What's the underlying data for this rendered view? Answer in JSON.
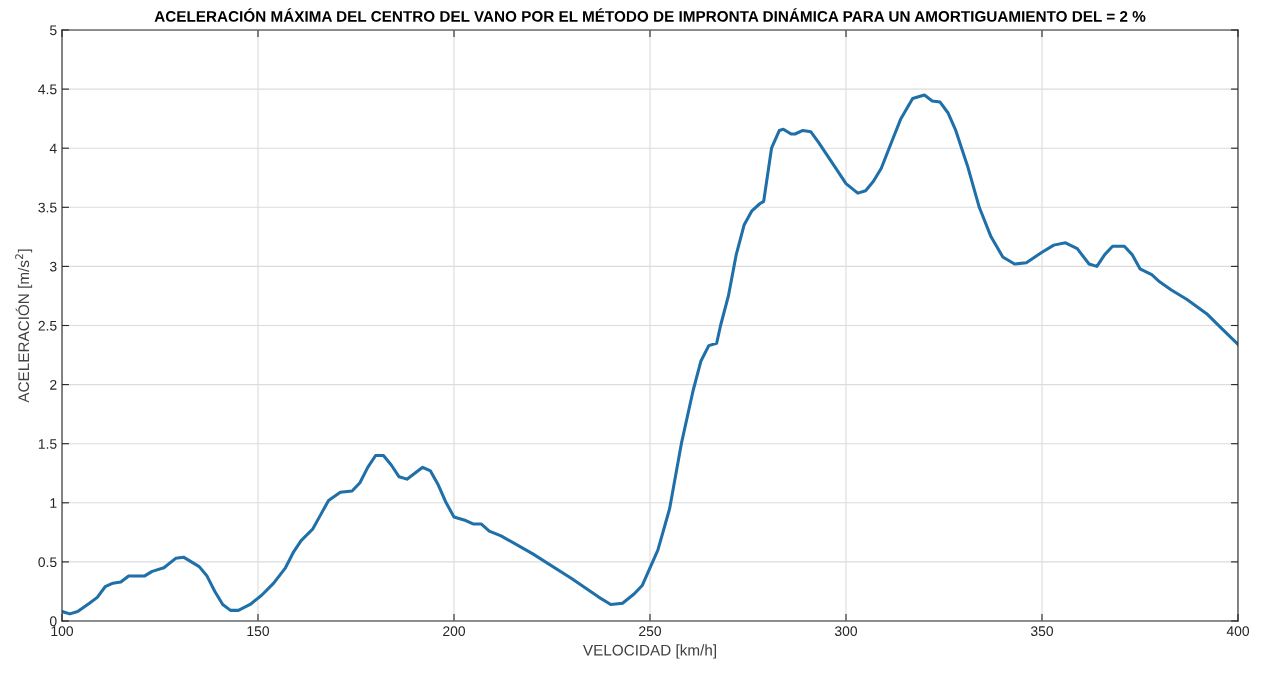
{
  "chart_data": {
    "type": "line",
    "title": "ACELERACIÓN MÁXIMA DEL CENTRO DEL VANO POR EL MÉTODO DE IMPRONTA DINÁMICA PARA UN AMORTIGUAMIENTO DEL = 2 %",
    "xlabel": "VELOCIDAD [km/h]",
    "ylabel": "ACELERACIÓN [m/s$^{2}$]",
    "x": [
      100,
      102,
      104,
      107,
      109,
      111,
      113,
      115,
      117,
      119,
      121,
      123,
      126,
      129,
      131,
      133,
      135,
      137,
      139,
      141,
      143,
      145,
      148,
      151,
      154,
      157,
      159,
      161,
      164,
      166,
      168,
      171,
      174,
      176,
      178,
      180,
      182,
      184,
      186,
      188,
      190,
      192,
      194,
      196,
      198,
      200,
      203,
      205,
      207,
      209,
      212,
      220,
      230,
      237,
      240,
      243,
      246,
      248,
      250,
      252,
      255,
      258,
      261,
      263,
      265,
      267,
      268,
      270,
      272,
      274,
      276,
      278,
      279,
      281,
      283,
      284,
      286,
      287,
      289,
      291,
      293,
      295,
      297,
      300,
      303,
      305,
      307,
      309,
      311,
      314,
      317,
      320,
      322,
      324,
      326,
      328,
      331,
      334,
      337,
      340,
      343,
      346,
      350,
      353,
      356,
      359,
      362,
      364,
      366,
      368,
      371,
      373,
      375,
      378,
      380,
      383,
      387,
      392,
      396,
      400
    ],
    "series": [
      {
        "color": "#1f6fa8",
        "values": [
          0.08,
          0.06,
          0.08,
          0.15,
          0.2,
          0.29,
          0.32,
          0.33,
          0.38,
          0.38,
          0.38,
          0.42,
          0.45,
          0.53,
          0.54,
          0.5,
          0.46,
          0.38,
          0.25,
          0.14,
          0.09,
          0.09,
          0.14,
          0.22,
          0.32,
          0.45,
          0.58,
          0.68,
          0.78,
          0.9,
          1.02,
          1.09,
          1.1,
          1.17,
          1.3,
          1.4,
          1.4,
          1.32,
          1.22,
          1.2,
          1.25,
          1.3,
          1.27,
          1.15,
          1.0,
          0.88,
          0.85,
          0.82,
          0.82,
          0.76,
          0.72,
          0.57,
          0.36,
          0.2,
          0.14,
          0.15,
          0.23,
          0.3,
          0.45,
          0.6,
          0.95,
          1.5,
          1.95,
          2.2,
          2.33,
          2.35,
          2.5,
          2.75,
          3.1,
          3.35,
          3.47,
          3.53,
          3.55,
          4.0,
          4.15,
          4.16,
          4.12,
          4.12,
          4.15,
          4.14,
          4.05,
          3.95,
          3.85,
          3.7,
          3.62,
          3.64,
          3.72,
          3.83,
          4.0,
          4.25,
          4.42,
          4.45,
          4.4,
          4.39,
          4.3,
          4.15,
          3.85,
          3.5,
          3.25,
          3.08,
          3.02,
          3.03,
          3.12,
          3.18,
          3.2,
          3.15,
          3.02,
          3.0,
          3.1,
          3.17,
          3.17,
          3.1,
          2.98,
          2.93,
          2.87,
          2.8,
          2.72,
          2.6,
          2.47,
          2.34
        ]
      }
    ],
    "xlim": [
      100,
      400
    ],
    "xticks": [
      100,
      150,
      200,
      250,
      300,
      350,
      400
    ],
    "ylim": [
      0,
      5
    ],
    "yticks": [
      0,
      {
        "value": 0.5,
        "label": "0.5"
      },
      1,
      {
        "value": 1.5,
        "label": "1.5"
      },
      2,
      {
        "value": 2.5,
        "label": "2.5"
      },
      3,
      {
        "value": 3.5,
        "label": "3.5"
      },
      4,
      {
        "value": 4.5,
        "label": "4.5"
      },
      5
    ],
    "grid": true,
    "marker": "none",
    "line_style": "solid"
  }
}
